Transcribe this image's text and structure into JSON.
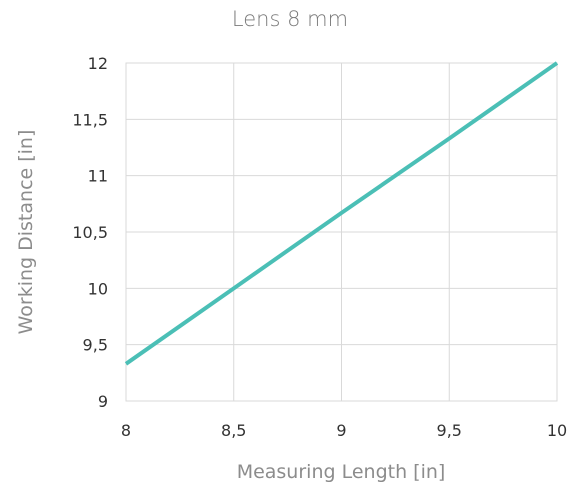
{
  "chart_data": {
    "type": "line",
    "title": "Lens 8 mm",
    "xlabel": "Measuring Length [in]",
    "ylabel": "Working Distance [in]",
    "xlim": [
      8,
      10
    ],
    "ylim": [
      9,
      12
    ],
    "x_ticks": [
      8,
      8.5,
      9,
      9.5,
      10
    ],
    "y_ticks": [
      9,
      9.5,
      10,
      10.5,
      11,
      11.5,
      12
    ],
    "x_tick_labels": [
      "8",
      "8,5",
      "9",
      "9,5",
      "10"
    ],
    "y_tick_labels": [
      "9",
      "9,5",
      "10",
      "10,5",
      "11",
      "11,5",
      "12"
    ],
    "grid": true,
    "legend": "none",
    "series": [
      {
        "color": "#4bbfb6",
        "x": [
          8,
          8.5,
          9,
          9.5,
          10
        ],
        "y": [
          9.33,
          10.0,
          10.67,
          11.33,
          12.0
        ]
      }
    ]
  }
}
